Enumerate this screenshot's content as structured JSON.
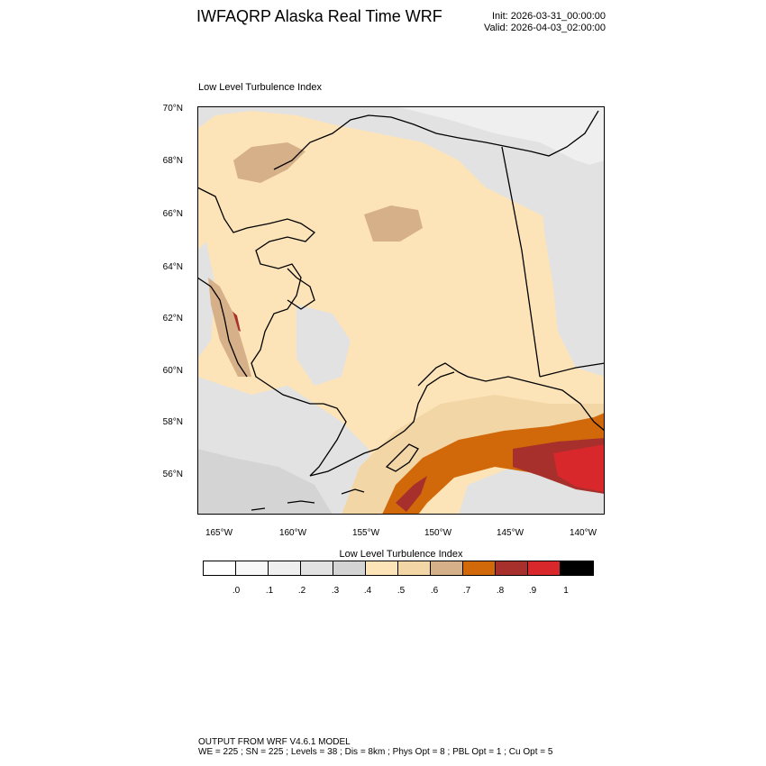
{
  "header": {
    "title": "IWFAQRP Alaska Real Time WRF",
    "init": "Init: 2026-03-31_00:00:00",
    "valid": "Valid: 2026-04-03_02:00:00"
  },
  "panel": {
    "title": "Low Level Turbulence Index"
  },
  "axes": {
    "lat_labels": [
      "70°N",
      "68°N",
      "66°N",
      "64°N",
      "62°N",
      "60°N",
      "58°N",
      "56°N"
    ],
    "lon_labels": [
      "165°W",
      "160°W",
      "155°W",
      "150°W",
      "145°W",
      "140°W"
    ]
  },
  "colorbar": {
    "title": "Low Level Turbulence Index",
    "tick_labels": [
      ".0",
      ".1",
      ".2",
      ".3",
      ".4",
      ".5",
      ".6",
      ".7",
      ".8",
      ".9",
      "1"
    ],
    "colors": [
      "#ffffff",
      "#f8f8f8",
      "#efefef",
      "#e2e2e2",
      "#d4d4d4",
      "#fde4b8",
      "#f3d6a6",
      "#d6b088",
      "#d16809",
      "#a8302c",
      "#d8282c",
      "#000000"
    ]
  },
  "footer": {
    "line1": "OUTPUT FROM WRF V4.6.1 MODEL",
    "line2": "WE = 225 ; SN = 225 ; Levels = 38 ; Dis = 8km ; Phys Opt = 8 ; PBL Opt = 1 ; Cu Opt = 5"
  }
}
